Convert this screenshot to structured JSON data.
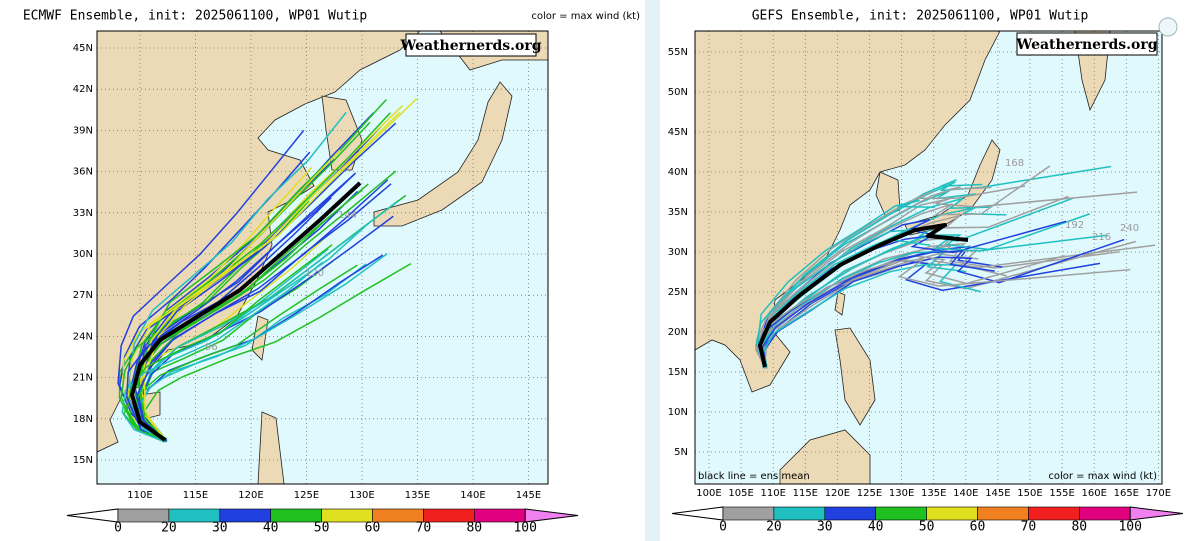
{
  "panels": [
    {
      "title": "ECMWF Ensemble, init: 2025061100, WP01 Wutip",
      "color_note": "color = max wind (kt)",
      "watermark": "Weathernerds.org",
      "lat_labels": [
        "45N",
        "42N",
        "39N",
        "36N",
        "33N",
        "30N",
        "27N",
        "24N",
        "21N",
        "18N",
        "15N"
      ],
      "lon_labels": [
        "110E",
        "115E",
        "120E",
        "125E",
        "130E",
        "135E",
        "140E",
        "145E"
      ],
      "colorbar_labels": [
        "0",
        "20",
        "30",
        "40",
        "50",
        "60",
        "70",
        "80",
        "100"
      ],
      "track_labels": [
        "120",
        "96",
        "144"
      ]
    },
    {
      "title": "GEFS Ensemble, init: 2025061100, WP01 Wutip",
      "color_note": "color = max wind (kt)",
      "mean_note": "black line = ens mean",
      "watermark": "Weathernerds.org",
      "lat_labels": [
        "55N",
        "50N",
        "45N",
        "40N",
        "35N",
        "30N",
        "25N",
        "20N",
        "15N",
        "10N",
        "5N"
      ],
      "lon_labels": [
        "100E",
        "105E",
        "110E",
        "115E",
        "120E",
        "125E",
        "130E",
        "135E",
        "140E",
        "145E",
        "150E",
        "155E",
        "160E",
        "165E",
        "170E"
      ],
      "colorbar_labels": [
        "0",
        "20",
        "30",
        "40",
        "50",
        "60",
        "70",
        "80",
        "100"
      ],
      "track_labels": [
        "168",
        "192",
        "216",
        "240"
      ]
    }
  ]
}
